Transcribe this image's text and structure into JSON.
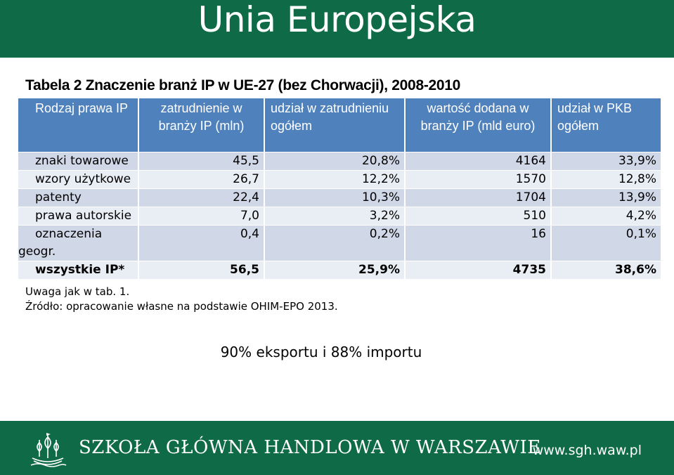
{
  "slide": {
    "title": "Unia Europejska",
    "caption": "Tabela 2 Znaczenie branż IP w UE-27 (bez Chorwacji), 2008-2010",
    "highlight": "90% eksportu i 88% importu",
    "colors": {
      "title_bar": "#0f6a47",
      "table_header": "#4f81bd",
      "row_dark": "#d0d8e8",
      "row_light": "#e9edf4"
    }
  },
  "table": {
    "headers": [
      "Rodzaj prawa IP",
      "zatrudnienie w branży IP (mln)",
      "udział w zatrudnieniu ogółem",
      "wartość dodana w branży IP (mld euro)",
      "udział w PKB ogółem"
    ],
    "rows": [
      {
        "name": "znaki towarowe",
        "employment": "45,5",
        "employment_share": "20,8%",
        "value_added": "4164",
        "gdp_share": "33,9%"
      },
      {
        "name": "wzory użytkowe",
        "employment": "26,7",
        "employment_share": "12,2%",
        "value_added": "1570",
        "gdp_share": "12,8%"
      },
      {
        "name": "patenty",
        "employment": "22,4",
        "employment_share": "10,3%",
        "value_added": "1704",
        "gdp_share": "13,9%"
      },
      {
        "name": "prawa autorskie",
        "employment": "7,0",
        "employment_share": "3,2%",
        "value_added": "510",
        "gdp_share": "4,2%"
      },
      {
        "name_line1": "oznaczenia",
        "name_line2": "geogr.",
        "employment": "0,4",
        "employment_share": "0,2%",
        "value_added": "16",
        "gdp_share": "0,1%"
      },
      {
        "name": "wszystkie IP*",
        "employment": "56,5",
        "employment_share": "25,9%",
        "value_added": "4735",
        "gdp_share": "38,6%"
      }
    ]
  },
  "notes": {
    "note": "Uwaga jak w tab. 1.",
    "source": "Źródło: opracowanie własne na podstawie OHIM-EPO 2013."
  },
  "footer": {
    "institution": "SZKOŁA GŁÓWNA HANDLOWA W WARSZAWIE",
    "url": "www.sgh.waw.pl",
    "logo_icon": "ship-logo-icon"
  }
}
